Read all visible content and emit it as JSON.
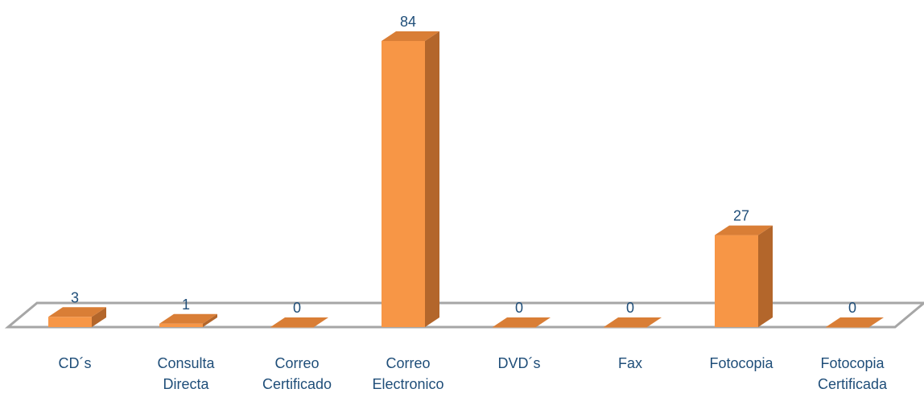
{
  "chart_data": {
    "type": "bar",
    "style": "3d-column",
    "title": "",
    "xlabel": "",
    "ylabel": "",
    "ylim": [
      0,
      84
    ],
    "grid": false,
    "legend": "none",
    "categories": [
      [
        "CD´s"
      ],
      [
        "Consulta",
        "Directa"
      ],
      [
        "Correo",
        "Certificado"
      ],
      [
        "Correo",
        "Electronico"
      ],
      [
        "DVD´s"
      ],
      [
        "Fax"
      ],
      [
        "Fotocopia"
      ],
      [
        "Fotocopia",
        "Certificada"
      ]
    ],
    "series": [
      {
        "values": [
          3,
          1,
          0,
          84,
          0,
          0,
          27,
          0
        ]
      }
    ],
    "data_labels": [
      "3",
      "1",
      "0",
      "84",
      "0",
      "0",
      "27",
      "0"
    ],
    "colors": {
      "front": "#f79646",
      "side": "#b3662b",
      "top": "#d97e36",
      "floor": "#a6a6a6",
      "label": "#1f4e79"
    }
  }
}
